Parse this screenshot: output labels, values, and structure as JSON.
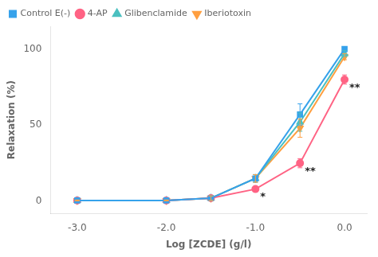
{
  "chart_data": {
    "type": "line",
    "x": [
      -3.0,
      -2.0,
      -1.5,
      -1.0,
      -0.5,
      0.0
    ],
    "series": [
      {
        "name": "Control E(-)",
        "marker": "square",
        "values": [
          0.5,
          0.5,
          2.0,
          15.0,
          57.0,
          100.0
        ],
        "errors": [
          0.3,
          0.3,
          1.5,
          2.5,
          7.0,
          1.0
        ]
      },
      {
        "name": "4-AP",
        "marker": "circle",
        "values": [
          0.5,
          0.5,
          2.0,
          8.0,
          25.0,
          80.0
        ],
        "errors": [
          0.3,
          0.3,
          1.5,
          1.5,
          3.0,
          3.0
        ]
      },
      {
        "name": "Glibenclamide",
        "marker": "triangle-up",
        "values": [
          0.5,
          0.5,
          2.0,
          15.0,
          52.0,
          97.0
        ],
        "errors": [
          0.3,
          0.3,
          1.5,
          2.5,
          6.0,
          2.0
        ]
      },
      {
        "name": "Iberiotoxin",
        "marker": "triangle-down",
        "values": [
          0.5,
          0.5,
          2.0,
          15.0,
          48.0,
          95.0
        ],
        "errors": [
          0.3,
          0.3,
          1.5,
          2.5,
          6.0,
          2.0
        ]
      }
    ],
    "xlabel": "Log [ZCDE] (g/l)",
    "ylabel": "Relaxation (%)",
    "xlim": [
      -3.3,
      0.25
    ],
    "ylim": [
      -8,
      115
    ],
    "xticks": [
      {
        "value": -3.0,
        "label": "-3.0"
      },
      {
        "value": -2.0,
        "label": "-2.0"
      },
      {
        "value": -1.0,
        "label": "-1.0"
      },
      {
        "value": 0.0,
        "label": "0.0"
      }
    ],
    "yticks": [
      0,
      50,
      100
    ],
    "grid": false,
    "legend": "upper left",
    "annotations": [
      {
        "x": -1.0,
        "y": 8.0,
        "text": "*"
      },
      {
        "x": -0.5,
        "y": 25.0,
        "text": "**"
      },
      {
        "x": 0.0,
        "y": 80.0,
        "text": "**"
      }
    ]
  }
}
